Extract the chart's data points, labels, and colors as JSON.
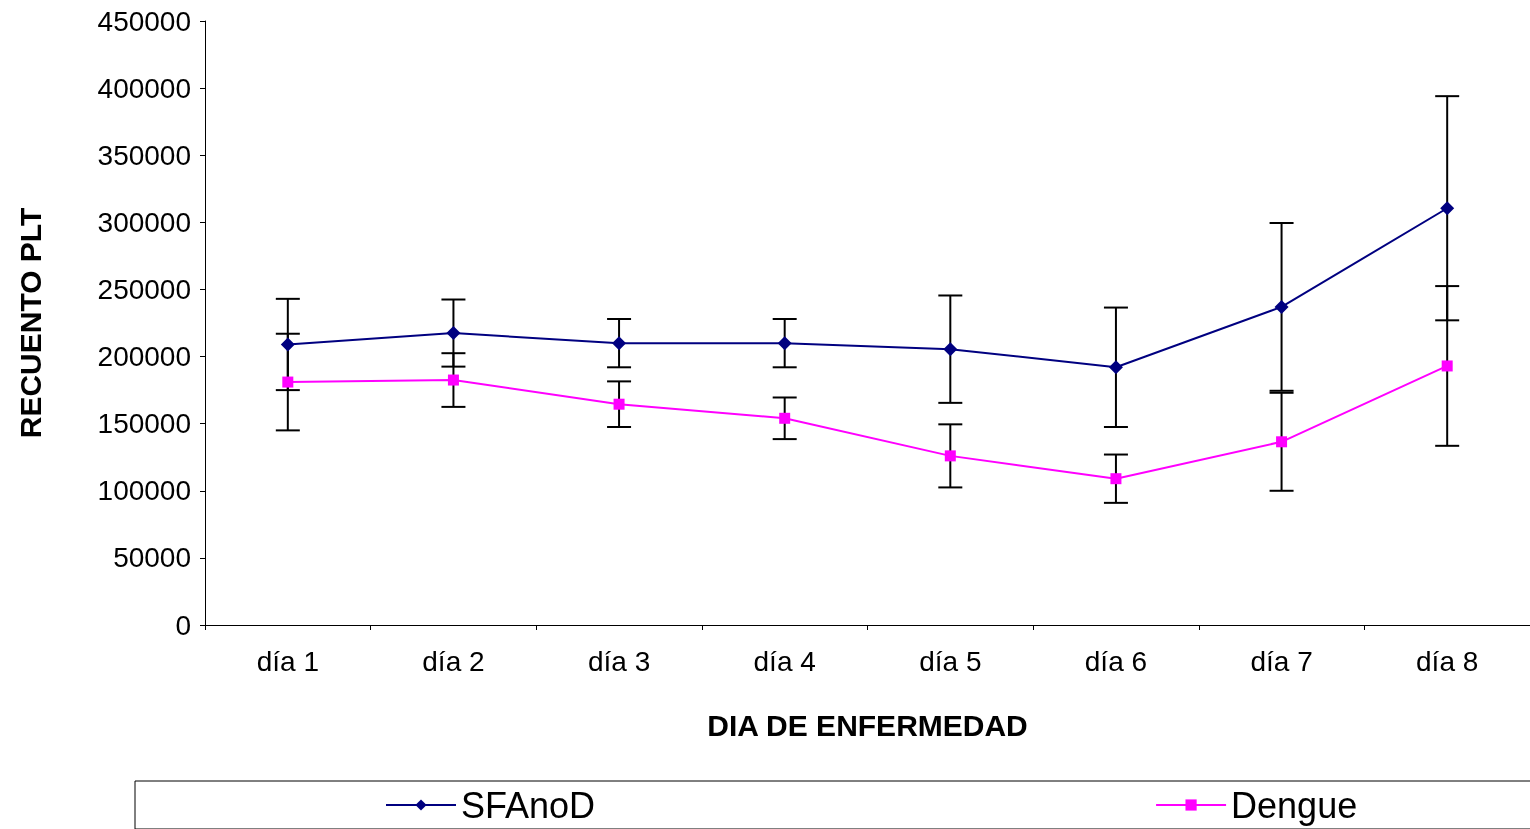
{
  "chart_data": {
    "type": "line",
    "xlabel": "DIA DE ENFERMEDAD",
    "ylabel": "RECUENTO PLT",
    "categories": [
      "día 1",
      "día 2",
      "día 3",
      "día 4",
      "día 5",
      "día 6",
      "día 7",
      "día 8"
    ],
    "ylim": [
      0,
      450000
    ],
    "yticks": [
      0,
      50000,
      100000,
      150000,
      200000,
      250000,
      300000,
      350000,
      400000,
      450000
    ],
    "grid": false,
    "legend": "bottom",
    "series": [
      {
        "name": "SFAnoD",
        "color": "#000080",
        "marker": "diamond",
        "values": [
          209000,
          217500,
          210000,
          210000,
          205500,
          192000,
          237000,
          310500
        ],
        "errors": [
          34000,
          25000,
          18000,
          18000,
          40000,
          44500,
          62500,
          83500
        ]
      },
      {
        "name": "Dengue",
        "color": "#ff00ff",
        "marker": "square",
        "values": [
          181000,
          182500,
          164500,
          154000,
          126000,
          109000,
          136500,
          193000
        ],
        "errors": [
          36000,
          20000,
          17000,
          15500,
          23500,
          18000,
          36500,
          59500
        ]
      }
    ]
  }
}
